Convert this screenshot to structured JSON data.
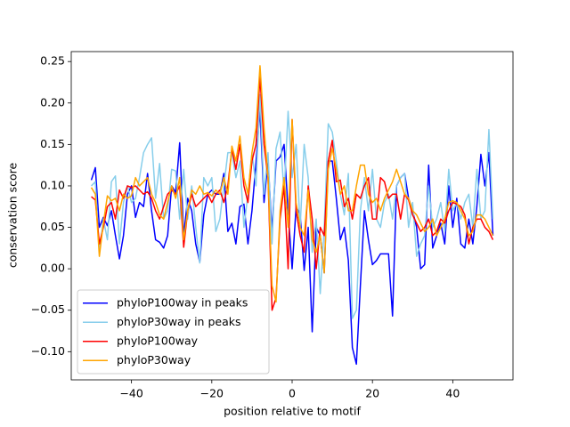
{
  "chart_data": {
    "type": "line",
    "xlabel": "position relative to motif",
    "ylabel": "conservation score",
    "x": [
      -50,
      -49,
      -48,
      -47,
      -46,
      -45,
      -44,
      -43,
      -42,
      -41,
      -40,
      -39,
      -38,
      -37,
      -36,
      -35,
      -34,
      -33,
      -32,
      -31,
      -30,
      -29,
      -28,
      -27,
      -26,
      -25,
      -24,
      -23,
      -22,
      -21,
      -20,
      -19,
      -18,
      -17,
      -16,
      -15,
      -14,
      -13,
      -12,
      -11,
      -10,
      -9,
      -8,
      -7,
      -6,
      -5,
      -4,
      -3,
      -2,
      -1,
      0,
      1,
      2,
      3,
      4,
      5,
      6,
      7,
      8,
      9,
      10,
      11,
      12,
      13,
      14,
      15,
      16,
      17,
      18,
      19,
      20,
      21,
      22,
      23,
      24,
      25,
      26,
      27,
      28,
      29,
      30,
      31,
      32,
      33,
      34,
      35,
      36,
      37,
      38,
      39,
      40,
      41,
      42,
      43,
      44,
      45,
      46,
      47,
      48,
      49,
      50
    ],
    "series": [
      {
        "name": "phyloP100way in peaks",
        "color": "#0000ff",
        "values": [
          0.107,
          0.122,
          0.05,
          0.062,
          0.052,
          0.07,
          0.04,
          0.012,
          0.04,
          0.09,
          0.1,
          0.062,
          0.08,
          0.075,
          0.115,
          0.07,
          0.035,
          0.032,
          0.025,
          0.04,
          0.1,
          0.092,
          0.152,
          0.04,
          0.085,
          0.07,
          0.03,
          0.008,
          0.065,
          0.09,
          0.095,
          0.09,
          0.09,
          0.115,
          0.045,
          0.055,
          0.03,
          0.075,
          0.078,
          0.03,
          0.07,
          0.128,
          0.192,
          0.08,
          0.13,
          0.045,
          0.13,
          0.135,
          0.15,
          0.07,
          0.0,
          0.075,
          0.065,
          -0.002,
          0.05,
          -0.076,
          0.05,
          0.04,
          -0.005,
          0.13,
          0.13,
          0.085,
          0.035,
          0.05,
          0.01,
          -0.095,
          -0.115,
          -0.02,
          0.07,
          0.035,
          0.005,
          0.01,
          0.018,
          0.018,
          0.018,
          -0.057,
          0.1,
          0.11,
          0.115,
          0.085,
          0.07,
          0.05,
          0.0,
          0.005,
          0.125,
          0.025,
          0.04,
          0.055,
          0.03,
          0.1,
          0.05,
          0.085,
          0.03,
          0.025,
          0.06,
          0.03,
          0.075,
          0.138,
          0.1,
          0.14,
          0.04
        ]
      },
      {
        "name": "phyloP30way in peaks",
        "color": "#87ceeb",
        "values": [
          0.1,
          0.105,
          0.02,
          0.06,
          0.035,
          0.105,
          0.112,
          0.03,
          0.08,
          0.1,
          0.08,
          0.085,
          0.11,
          0.14,
          0.15,
          0.158,
          0.085,
          0.127,
          0.06,
          0.07,
          0.12,
          0.118,
          0.06,
          0.12,
          0.06,
          0.1,
          0.05,
          0.007,
          0.11,
          0.1,
          0.11,
          0.045,
          0.06,
          0.1,
          0.14,
          0.14,
          0.11,
          0.13,
          0.05,
          0.09,
          0.14,
          0.1,
          0.21,
          0.09,
          0.14,
          0.03,
          0.145,
          0.165,
          0.09,
          0.19,
          0.11,
          0.15,
          0.05,
          0.15,
          0.11,
          0.02,
          0.06,
          -0.03,
          0.05,
          0.175,
          0.165,
          0.13,
          0.09,
          0.065,
          0.115,
          -0.06,
          -0.05,
          0.07,
          0.11,
          0.07,
          0.12,
          0.06,
          0.05,
          0.08,
          0.09,
          0.06,
          0.1,
          0.11,
          0.115,
          0.05,
          0.08,
          0.015,
          0.03,
          0.04,
          0.1,
          0.05,
          0.06,
          0.08,
          0.045,
          0.12,
          0.07,
          0.08,
          0.06,
          0.08,
          0.09,
          0.05,
          0.12,
          0.06,
          0.07,
          0.168,
          0.06
        ]
      },
      {
        "name": "phyloP100way",
        "color": "#ff0000",
        "values": [
          0.087,
          0.083,
          0.03,
          0.05,
          0.075,
          0.08,
          0.06,
          0.095,
          0.085,
          0.1,
          0.098,
          0.1,
          0.095,
          0.09,
          0.093,
          0.085,
          0.07,
          0.06,
          0.075,
          0.09,
          0.095,
          0.09,
          0.1,
          0.026,
          0.07,
          0.09,
          0.075,
          0.08,
          0.085,
          0.09,
          0.08,
          0.09,
          0.095,
          0.08,
          0.1,
          0.145,
          0.12,
          0.15,
          0.1,
          0.08,
          0.13,
          0.15,
          0.232,
          0.15,
          0.11,
          -0.05,
          -0.035,
          0.06,
          0.1,
          0.0,
          0.18,
          0.07,
          0.04,
          0.02,
          0.1,
          0.06,
          0.0,
          0.05,
          0.04,
          0.13,
          0.155,
          0.105,
          0.107,
          0.075,
          0.085,
          0.06,
          0.09,
          0.085,
          0.1,
          0.11,
          0.06,
          0.06,
          0.11,
          0.105,
          0.085,
          0.09,
          0.09,
          0.06,
          0.09,
          0.083,
          0.065,
          0.055,
          0.045,
          0.05,
          0.06,
          0.04,
          0.045,
          0.06,
          0.055,
          0.07,
          0.08,
          0.078,
          0.075,
          0.065,
          0.03,
          0.05,
          0.06,
          0.06,
          0.05,
          0.045,
          0.035
        ]
      },
      {
        "name": "phyloP30way",
        "color": "#ffa500",
        "values": [
          0.098,
          0.09,
          0.015,
          0.055,
          0.088,
          0.082,
          0.085,
          0.07,
          0.09,
          0.085,
          0.088,
          0.11,
          0.1,
          0.105,
          0.11,
          0.09,
          0.08,
          0.065,
          0.06,
          0.08,
          0.1,
          0.085,
          0.11,
          0.035,
          0.07,
          0.095,
          0.09,
          0.1,
          0.09,
          0.092,
          0.088,
          0.095,
          0.09,
          0.11,
          0.09,
          0.148,
          0.13,
          0.16,
          0.11,
          0.09,
          0.14,
          0.17,
          0.245,
          0.17,
          0.11,
          -0.02,
          -0.04,
          0.07,
          0.11,
          0.05,
          0.18,
          0.08,
          0.05,
          0.04,
          0.095,
          0.035,
          0.02,
          0.04,
          -0.005,
          0.12,
          0.145,
          0.12,
          0.09,
          0.1,
          0.07,
          0.07,
          0.1,
          0.125,
          0.125,
          0.09,
          0.08,
          0.085,
          0.07,
          0.085,
          0.095,
          0.105,
          0.12,
          0.105,
          0.09,
          0.085,
          0.07,
          0.065,
          0.055,
          0.045,
          0.05,
          0.06,
          0.04,
          0.05,
          0.06,
          0.08,
          0.082,
          0.08,
          0.07,
          0.06,
          0.04,
          0.045,
          0.065,
          0.065,
          0.06,
          0.05,
          0.04
        ]
      }
    ],
    "xlim": [
      -55,
      55
    ],
    "ylim": [
      -0.134,
      0.262
    ],
    "xticks": [
      {
        "value": -40,
        "label": "−40"
      },
      {
        "value": -20,
        "label": "−20"
      },
      0,
      20,
      40
    ],
    "yticks": [
      {
        "value": -0.1,
        "label": "−0.10"
      },
      {
        "value": -0.05,
        "label": "−0.05"
      },
      {
        "value": 0,
        "label": "0.00"
      },
      0.05,
      {
        "value": 0.1,
        "label": "0.10"
      },
      0.15,
      {
        "value": 0.2,
        "label": "0.20"
      },
      0.25
    ],
    "legend": "lower left",
    "grid": false
  }
}
